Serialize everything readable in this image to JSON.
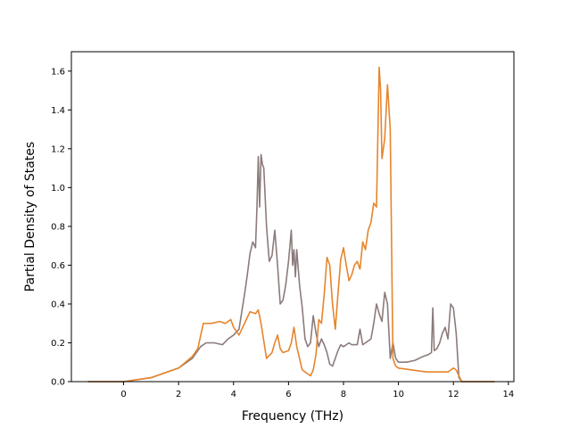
{
  "chart_data": {
    "type": "line",
    "xlabel": "Frequency (THz)",
    "ylabel": "Partial Density of States",
    "xlim": [
      -1.9,
      14.2
    ],
    "ylim": [
      0.0,
      1.7
    ],
    "xticks": [
      0,
      2,
      4,
      6,
      8,
      10,
      12,
      14
    ],
    "yticks": [
      0.0,
      0.2,
      0.4,
      0.6,
      0.8,
      1.0,
      1.2,
      1.4,
      1.6
    ],
    "xtick_labels": [
      "0",
      "2",
      "4",
      "6",
      "8",
      "10",
      "12",
      "14"
    ],
    "ytick_labels": [
      "0.0",
      "0.2",
      "0.4",
      "0.6",
      "0.8",
      "1.0",
      "1.2",
      "1.4",
      "1.6"
    ],
    "grid": false,
    "series": [
      {
        "color": "#8c7b7b",
        "x": [
          -1.3,
          0,
          1,
          2,
          2.5,
          2.8,
          3.0,
          3.3,
          3.6,
          3.8,
          4.0,
          4.2,
          4.4,
          4.5,
          4.6,
          4.7,
          4.8,
          4.85,
          4.9,
          4.95,
          5.0,
          5.05,
          5.1,
          5.2,
          5.3,
          5.4,
          5.5,
          5.6,
          5.7,
          5.8,
          5.9,
          6.0,
          6.1,
          6.15,
          6.2,
          6.25,
          6.3,
          6.4,
          6.5,
          6.6,
          6.7,
          6.8,
          6.9,
          7.0,
          7.1,
          7.2,
          7.3,
          7.4,
          7.5,
          7.6,
          7.7,
          7.8,
          7.9,
          8.0,
          8.1,
          8.2,
          8.3,
          8.4,
          8.5,
          8.6,
          8.7,
          8.8,
          8.9,
          9.0,
          9.1,
          9.2,
          9.3,
          9.4,
          9.5,
          9.6,
          9.7,
          9.8,
          9.9,
          10.0,
          10.3,
          10.6,
          10.9,
          11.1,
          11.2,
          11.25,
          11.3,
          11.4,
          11.5,
          11.6,
          11.7,
          11.8,
          11.9,
          12.0,
          12.1,
          12.2,
          12.3,
          13.5
        ],
        "y": [
          0.0,
          0.0,
          0.02,
          0.07,
          0.12,
          0.18,
          0.2,
          0.2,
          0.19,
          0.22,
          0.24,
          0.27,
          0.45,
          0.55,
          0.66,
          0.72,
          0.69,
          0.9,
          1.16,
          0.9,
          1.17,
          1.12,
          1.1,
          0.8,
          0.62,
          0.65,
          0.78,
          0.6,
          0.4,
          0.42,
          0.5,
          0.62,
          0.78,
          0.6,
          0.68,
          0.54,
          0.68,
          0.5,
          0.38,
          0.22,
          0.18,
          0.2,
          0.34,
          0.25,
          0.18,
          0.22,
          0.19,
          0.15,
          0.09,
          0.08,
          0.12,
          0.16,
          0.19,
          0.18,
          0.19,
          0.2,
          0.19,
          0.19,
          0.19,
          0.27,
          0.19,
          0.2,
          0.21,
          0.22,
          0.3,
          0.4,
          0.35,
          0.31,
          0.46,
          0.4,
          0.12,
          0.2,
          0.12,
          0.1,
          0.1,
          0.11,
          0.13,
          0.14,
          0.15,
          0.38,
          0.16,
          0.17,
          0.2,
          0.25,
          0.28,
          0.22,
          0.4,
          0.38,
          0.25,
          0.02,
          0.0,
          0.0
        ]
      },
      {
        "color": "#e6852b",
        "x": [
          -1.3,
          0,
          1,
          2,
          2.5,
          2.7,
          2.9,
          3.2,
          3.5,
          3.7,
          3.9,
          4.0,
          4.2,
          4.4,
          4.6,
          4.8,
          4.9,
          5.0,
          5.2,
          5.4,
          5.5,
          5.6,
          5.7,
          5.8,
          6.0,
          6.1,
          6.2,
          6.3,
          6.5,
          6.8,
          6.9,
          7.0,
          7.1,
          7.2,
          7.3,
          7.4,
          7.5,
          7.6,
          7.7,
          7.8,
          7.9,
          8.0,
          8.1,
          8.2,
          8.3,
          8.4,
          8.5,
          8.6,
          8.7,
          8.8,
          8.9,
          9.0,
          9.1,
          9.2,
          9.3,
          9.35,
          9.4,
          9.5,
          9.6,
          9.7,
          9.8,
          9.9,
          10.0,
          10.5,
          11.0,
          11.5,
          11.8,
          12.0,
          12.1,
          12.2,
          12.3,
          13.5
        ],
        "y": [
          0.0,
          0.0,
          0.02,
          0.07,
          0.13,
          0.17,
          0.3,
          0.3,
          0.31,
          0.3,
          0.32,
          0.28,
          0.24,
          0.3,
          0.36,
          0.35,
          0.37,
          0.3,
          0.12,
          0.15,
          0.2,
          0.24,
          0.17,
          0.15,
          0.16,
          0.2,
          0.28,
          0.18,
          0.06,
          0.03,
          0.06,
          0.14,
          0.32,
          0.3,
          0.45,
          0.64,
          0.6,
          0.4,
          0.27,
          0.45,
          0.63,
          0.69,
          0.6,
          0.52,
          0.55,
          0.6,
          0.62,
          0.58,
          0.72,
          0.68,
          0.78,
          0.82,
          0.92,
          0.9,
          1.62,
          1.5,
          1.15,
          1.25,
          1.53,
          1.3,
          0.12,
          0.08,
          0.07,
          0.06,
          0.05,
          0.05,
          0.05,
          0.07,
          0.06,
          0.03,
          0.0,
          0.0
        ]
      }
    ]
  }
}
